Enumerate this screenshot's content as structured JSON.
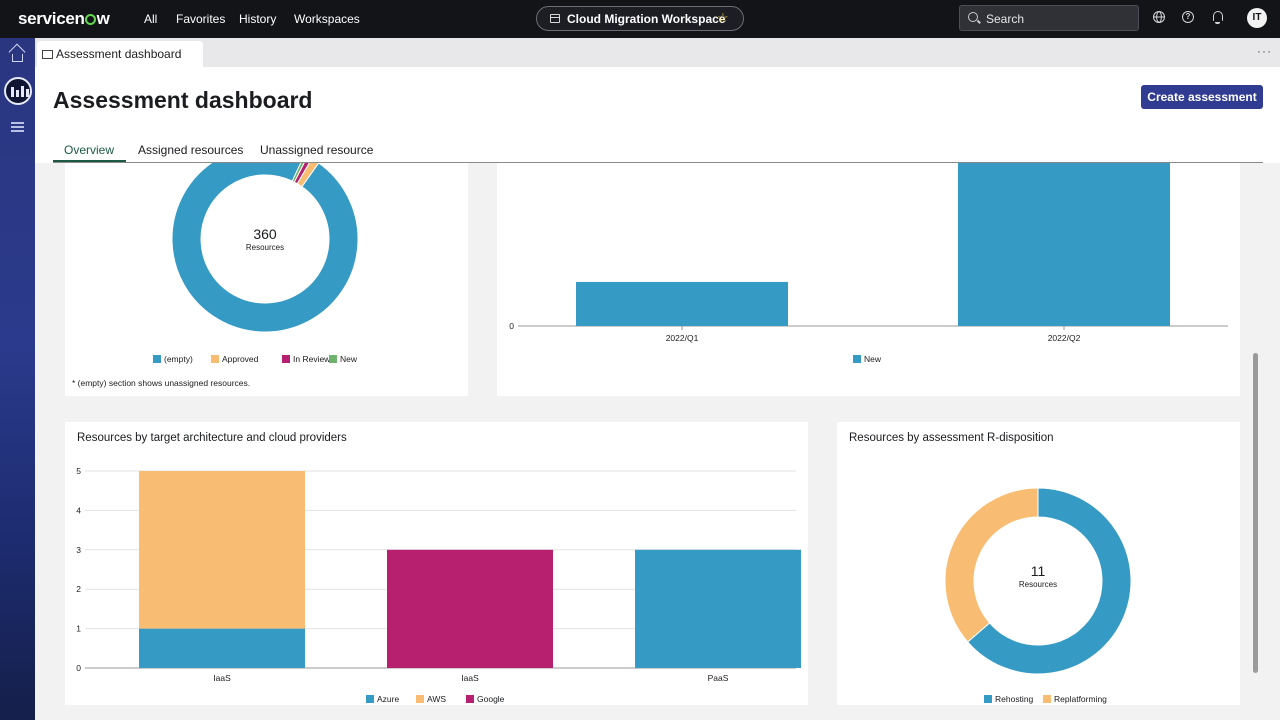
{
  "topnav": {
    "logo_pre": "servicen",
    "logo_post": "w",
    "items": [
      "All",
      "Favorites",
      "History",
      "Workspaces"
    ],
    "workspace": "Cloud Migration Workspace",
    "search_placeholder": "Search",
    "help_glyph": "?",
    "avatar_initials": "IT"
  },
  "tab": {
    "label": "Assessment dashboard",
    "more": "···"
  },
  "page": {
    "title": "Assessment dashboard",
    "create_button": "Create assessment",
    "tabs": [
      "Overview",
      "Assigned resources",
      "Unassigned resource"
    ]
  },
  "colors": {
    "blue": "#359ac4",
    "orange": "#f8bd72",
    "magenta": "#b7206e",
    "green": "#6eb26d",
    "brand": "#2f3c91"
  },
  "icons": [
    "home-icon",
    "workspace-icon",
    "list-icon",
    "globe-icon",
    "help-icon",
    "bell-icon",
    "search-icon",
    "star-icon"
  ],
  "chart_data": [
    {
      "type": "pie",
      "donut": true,
      "center_value": "360",
      "center_label": "Resources",
      "slices": [
        {
          "label": "(empty)",
          "value": 350
        },
        {
          "label": "Approved",
          "value": 5
        },
        {
          "label": "In Review",
          "value": 3
        },
        {
          "label": "New",
          "value": 2
        }
      ],
      "legend": [
        "(empty)",
        "Approved",
        "In Review",
        "New"
      ],
      "footnote": "* (empty) section shows unassigned resources."
    },
    {
      "type": "bar",
      "categories": [
        "2022/Q1",
        "2022/Q2"
      ],
      "series": [
        {
          "name": "New",
          "values": [
            1,
            3.7
          ]
        }
      ],
      "y_tick_labels": [
        "0"
      ],
      "ylim": [
        0,
        3.7
      ]
    },
    {
      "type": "bar",
      "stacked": true,
      "title": "Resources by target architecture and cloud providers",
      "categories": [
        "IaaS",
        "IaaS",
        "PaaS"
      ],
      "series": [
        {
          "name": "Azure",
          "values": [
            1,
            0,
            3
          ]
        },
        {
          "name": "AWS",
          "values": [
            4,
            0,
            0
          ]
        },
        {
          "name": "Google",
          "values": [
            0,
            3,
            0
          ]
        }
      ],
      "ylim": [
        0,
        5
      ],
      "yticks": [
        "0",
        "1",
        "2",
        "3",
        "4",
        "5"
      ]
    },
    {
      "type": "pie",
      "donut": true,
      "title": "Resources by assessment R-disposition",
      "center_value": "11",
      "center_label": "Resources",
      "slices": [
        {
          "label": "Rehosting",
          "value": 7
        },
        {
          "label": "Replatforming",
          "value": 4
        }
      ],
      "legend": [
        "Rehosting",
        "Replatforming"
      ]
    }
  ]
}
